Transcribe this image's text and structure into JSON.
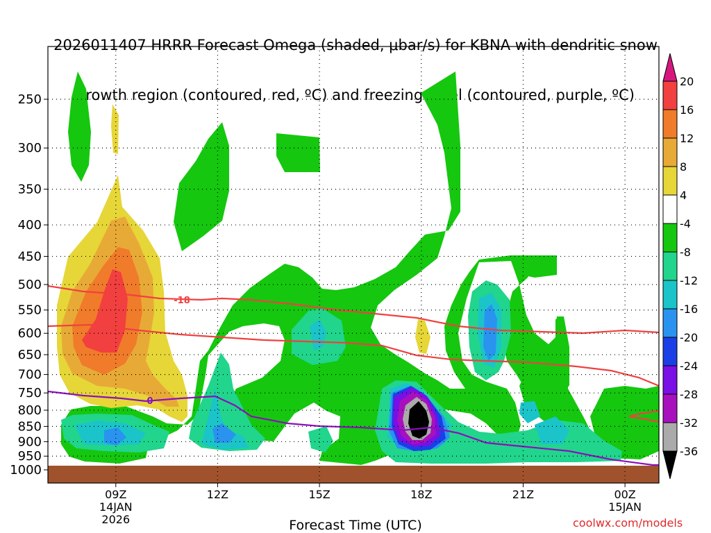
{
  "title": {
    "line1": "2026011407 HRRR Forecast Omega (shaded, μbar/s) for KBNA with dendritic snow",
    "line2": "growth region (contoured, red, ºC) and freezing level (contoured, purple, ºC)"
  },
  "credit": "coolwx.com/models",
  "chart_data": {
    "type": "time-height cross-section",
    "xlabel": "Forecast Time (UTC)",
    "x_range_hours_from_07Z": [
      0,
      18
    ],
    "y_scale": "log-pressure",
    "y_range_hPa": [
      1000,
      210
    ],
    "y_ticks_hPa": [
      250,
      300,
      350,
      400,
      450,
      500,
      550,
      600,
      650,
      700,
      750,
      800,
      850,
      900,
      950,
      1000
    ],
    "x_ticks": [
      {
        "label": "09Z",
        "sub1": "14JAN",
        "sub2": "2026",
        "hour": 2
      },
      {
        "label": "12Z",
        "sub1": "",
        "sub2": "",
        "hour": 5
      },
      {
        "label": "15Z",
        "sub1": "",
        "sub2": "",
        "hour": 8
      },
      {
        "label": "18Z",
        "sub1": "",
        "sub2": "",
        "hour": 11
      },
      {
        "label": "21Z",
        "sub1": "",
        "sub2": "",
        "hour": 14
      },
      {
        "label": "00Z",
        "sub1": "15JAN",
        "sub2": "",
        "hour": 17
      }
    ],
    "grid": true,
    "colorbar": {
      "levels": [
        20,
        16,
        12,
        8,
        4,
        -4,
        -8,
        -12,
        -16,
        -20,
        -24,
        -28,
        -32,
        -36
      ],
      "colors": [
        "#d6187e",
        "#f23f3f",
        "#f07b2a",
        "#e8aa36",
        "#e6d638",
        "#ffffff",
        "#15c70f",
        "#21d58c",
        "#1bc4c9",
        "#2a93f0",
        "#1b3fe6",
        "#7a0fe6",
        "#a910bd",
        "#aaaaaa",
        "#000000"
      ]
    },
    "omega_shaded": [
      {
        "level": -4,
        "color": "#15c70f",
        "label": "-4 to -8"
      },
      {
        "level": 4,
        "color": "#e6d638",
        "label": "4 to 8"
      },
      {
        "level": -8,
        "color": "#21d58c",
        "label": "-8 to -12"
      },
      {
        "level": 8,
        "color": "#e8aa36",
        "label": "8 to 12"
      },
      {
        "level": 12,
        "color": "#f07b2a",
        "label": "12 to 16"
      },
      {
        "level": 16,
        "color": "#f23f3f",
        "label": "16 to 20"
      },
      {
        "level": -12,
        "color": "#1bc4c9",
        "label": "-12 to -16"
      },
      {
        "level": -16,
        "color": "#2a93f0",
        "label": "-16 to -20"
      },
      {
        "level": -20,
        "color": "#1b3fe6",
        "label": "-20 to -24"
      },
      {
        "level": -24,
        "color": "#7a0fe6",
        "label": "-24 to -28"
      },
      {
        "level": -28,
        "color": "#a910bd",
        "label": "-28 to -32"
      },
      {
        "level": -32,
        "color": "#aaaaaa",
        "label": "-32 to -36"
      },
      {
        "level": -36,
        "color": "#000000",
        "label": "< -36"
      }
    ],
    "dgz_contours": [
      {
        "value": -18,
        "label": "-18",
        "color": "#f04040"
      },
      {
        "value": -12,
        "label": "",
        "color": "#f04040"
      }
    ],
    "freezing_level": {
      "value": 0,
      "label": "0",
      "color": "#8a10bd"
    },
    "ground_color": "#a0522d"
  }
}
